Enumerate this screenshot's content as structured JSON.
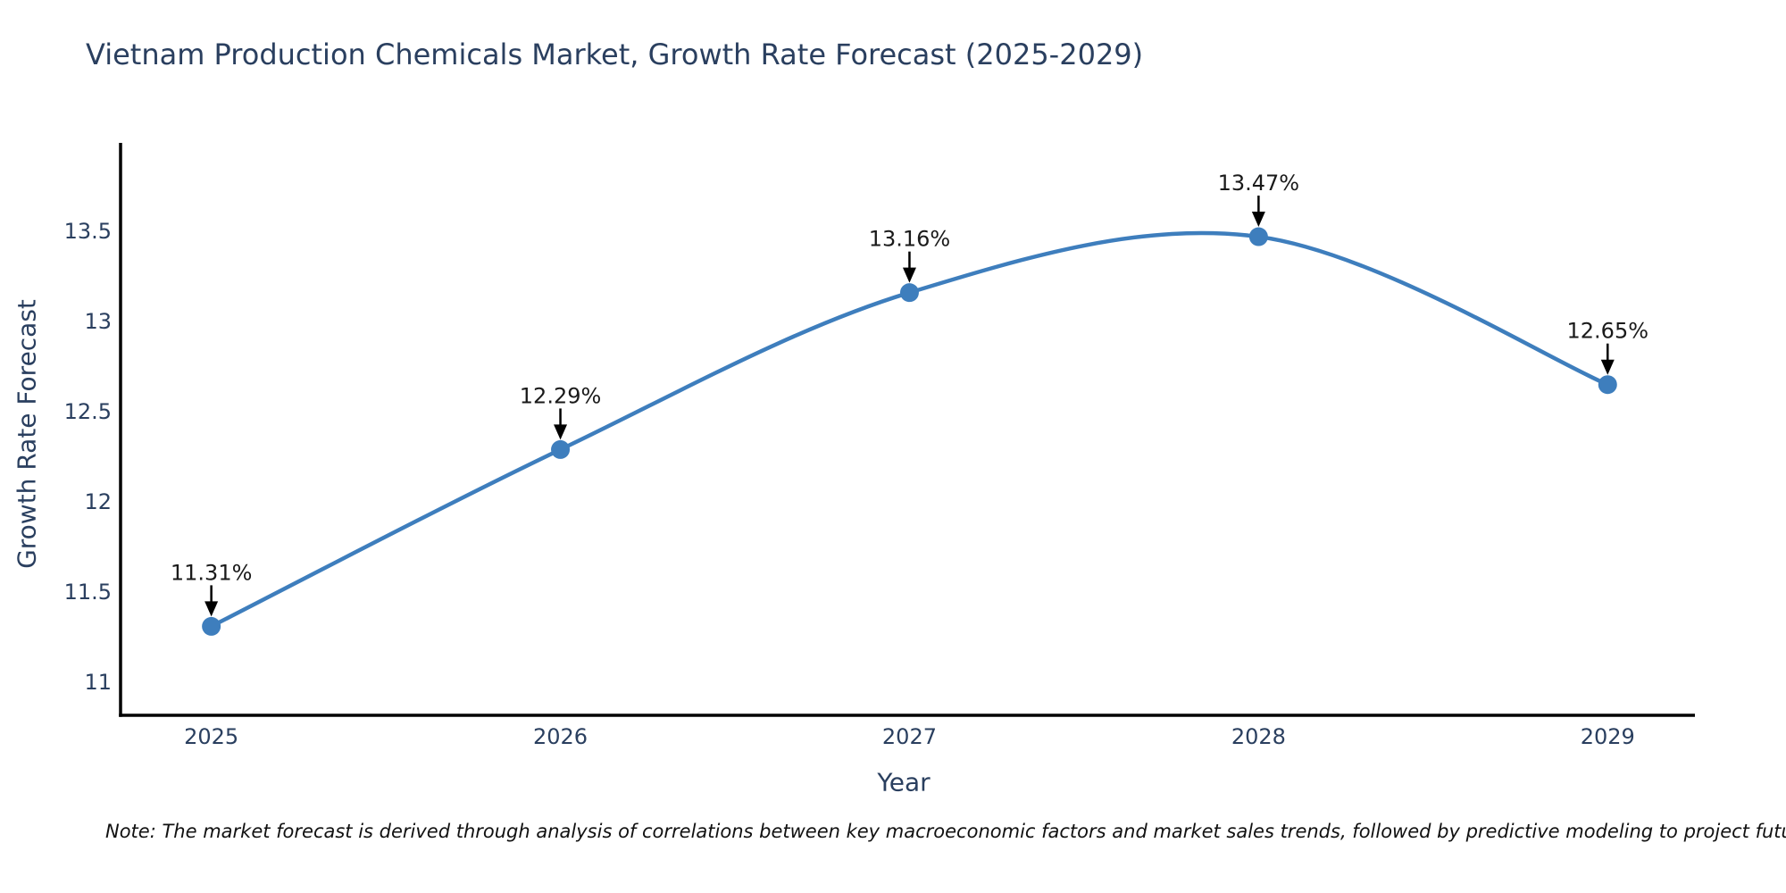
{
  "title": "Vietnam Production Chemicals Market, Growth Rate Forecast (2025-2029)",
  "note": "Note: The market forecast is derived through analysis of correlations between key macroeconomic factors and market sales trends, followed by predictive modeling to project future sales.",
  "chart_data": {
    "type": "line",
    "title": "Vietnam Production Chemicals Market, Growth Rate Forecast (2025-2029)",
    "xlabel": "Year",
    "ylabel": "Growth Rate Forecast",
    "x": [
      2025,
      2026,
      2027,
      2028,
      2029
    ],
    "y": [
      11.31,
      12.29,
      13.16,
      13.47,
      12.65
    ],
    "point_labels": [
      "11.31%",
      "12.29%",
      "13.16%",
      "13.47%",
      "12.65%"
    ],
    "xticks": [
      "2025",
      "2026",
      "2027",
      "2028",
      "2029"
    ],
    "yticks": [
      "11",
      "11.5",
      "12",
      "12.5",
      "13",
      "13.5"
    ],
    "ytick_values": [
      11,
      11.5,
      12,
      12.5,
      13,
      13.5
    ],
    "xlim": [
      2024.74,
      2029.25
    ],
    "ylim": [
      10.817,
      13.99
    ],
    "line_shape": "spline",
    "grid": false,
    "legend": "none",
    "colors": {
      "line": "#3e7ebd",
      "marker": "#3e7ebd",
      "arrow": "#000000",
      "axis": "#000000",
      "text": "#2a3f5f",
      "annotation_text": "#1a1a1a",
      "background": "#ffffff"
    }
  }
}
